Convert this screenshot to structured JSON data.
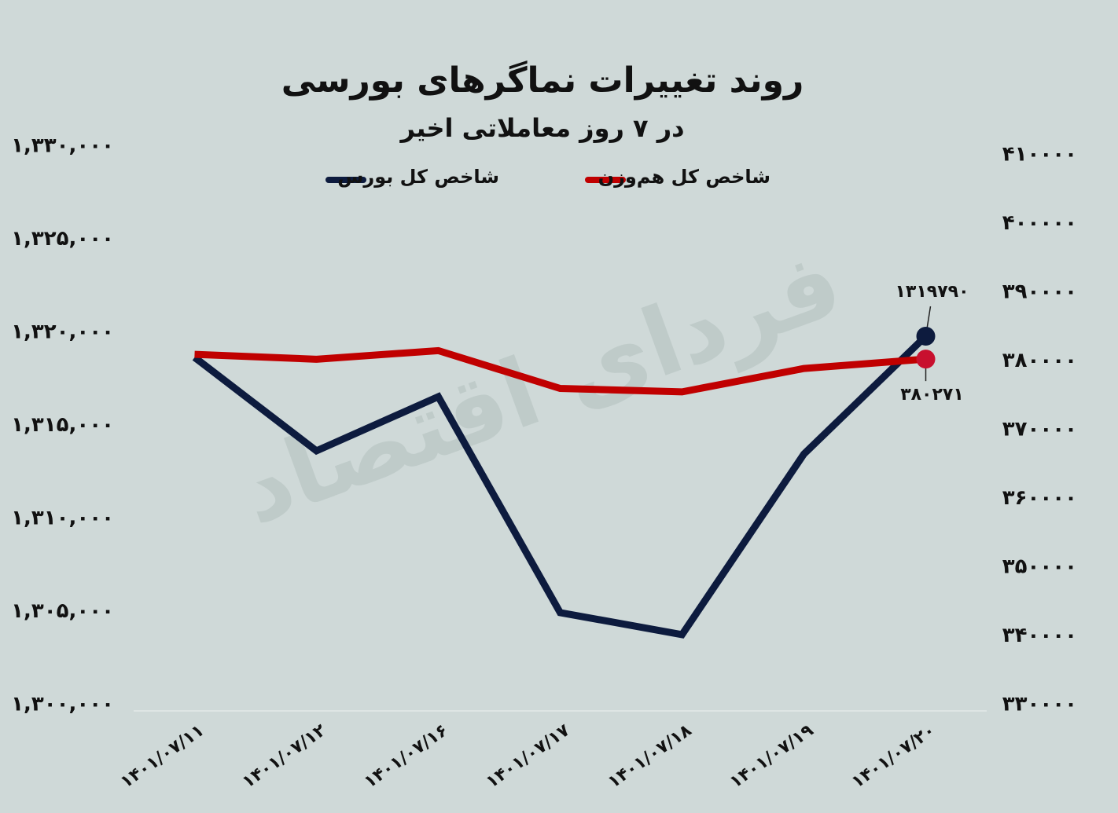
{
  "chart_data": {
    "type": "line",
    "title": "روند تغییرات نماگرهای بورسی",
    "subtitle": "در ۷ روز معاملاتی اخیر",
    "watermark": "فردای اقتصاد",
    "categories": [
      "۱۴۰۱/۰۷/۱۱",
      "۱۴۰۱/۰۷/۱۲",
      "۱۴۰۱/۰۷/۱۶",
      "۱۴۰۱/۰۷/۱۷",
      "۱۴۰۱/۰۷/۱۸",
      "۱۴۰۱/۰۷/۱۹",
      "۱۴۰۱/۰۷/۲۰"
    ],
    "series": [
      {
        "name": "شاخص کل بورس",
        "color": "#0d1b3e",
        "axis": "y",
        "values": [
          1318650,
          1313630,
          1316540,
          1304940,
          1303760,
          1313460,
          1319790
        ],
        "value_labels": [
          null,
          null,
          null,
          null,
          null,
          null,
          "۱۳۱۹۷۹۰"
        ]
      },
      {
        "name": "شاخص کل هم‌وزن",
        "color": "#c00000",
        "axis": "y2",
        "values": [
          380960,
          380250,
          381500,
          376000,
          375500,
          378900,
          380271
        ],
        "value_labels": [
          null,
          null,
          null,
          null,
          null,
          null,
          "۳۸۰۲۷۱"
        ]
      }
    ],
    "ylim": [
      1300000,
      1330000
    ],
    "yticks": [
      {
        "value": 1300000,
        "label": "۱,۳۰۰,۰۰۰"
      },
      {
        "value": 1305000,
        "label": "۱,۳۰۵,۰۰۰"
      },
      {
        "value": 1310000,
        "label": "۱,۳۱۰,۰۰۰"
      },
      {
        "value": 1315000,
        "label": "۱,۳۱۵,۰۰۰"
      },
      {
        "value": 1320000,
        "label": "۱,۳۲۰,۰۰۰"
      },
      {
        "value": 1325000,
        "label": "۱,۳۲۵,۰۰۰"
      },
      {
        "value": 1330000,
        "label": "۱,۳۳۰,۰۰۰"
      }
    ],
    "y2lim": [
      330000,
      410000
    ],
    "y2ticks": [
      {
        "value": 330000,
        "label": "۳۳۰۰۰۰"
      },
      {
        "value": 340000,
        "label": "۳۴۰۰۰۰"
      },
      {
        "value": 350000,
        "label": "۳۵۰۰۰۰"
      },
      {
        "value": 360000,
        "label": "۳۶۰۰۰۰"
      },
      {
        "value": 370000,
        "label": "۳۷۰۰۰۰"
      },
      {
        "value": 380000,
        "label": "۳۸۰۰۰۰"
      },
      {
        "value": 390000,
        "label": "۳۹۰۰۰۰"
      },
      {
        "value": 400000,
        "label": "۴۰۰۰۰۰"
      },
      {
        "value": 410000,
        "label": "۴۱۰۰۰۰"
      }
    ],
    "grid": false
  }
}
